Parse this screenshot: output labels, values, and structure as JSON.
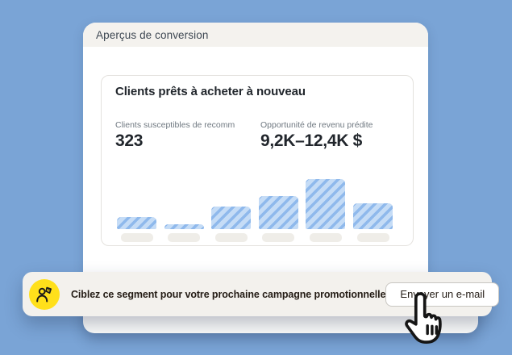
{
  "colors": {
    "background": "#7AA4D6",
    "card_header_bg": "#F4F2EE",
    "card_bg": "#FFFFFF",
    "inner_card_border": "#E4E2DE",
    "bar_base": "#C5DCF6",
    "bar_stripe": "#8FB9EC",
    "placeholder": "#EFEDE8",
    "banner_bg": "#F3F1ED",
    "accent_yellow": "#FFE01B",
    "text_dark": "#241C15",
    "text_heading": "#3E4853",
    "text_label": "#6F7880",
    "text_value": "#21262C",
    "button_border": "#C8C6C1"
  },
  "card": {
    "header_title": "Aperçus de conversion"
  },
  "panel": {
    "title": "Clients prêts à acheter à nouveau",
    "stats": [
      {
        "label": "Clients susceptibles de recomm",
        "value": "323"
      },
      {
        "label": "Opportunité de revenu prédite",
        "value": "9,2K–12,4K $"
      }
    ]
  },
  "chart_data": {
    "type": "bar",
    "title": "",
    "categories": [
      "",
      "",
      "",
      "",
      "",
      ""
    ],
    "values": [
      15,
      6,
      28,
      41,
      62,
      32
    ],
    "values_relative_percent": [
      24,
      10,
      45,
      66,
      100,
      52
    ],
    "ylabel": "",
    "xlabel": "",
    "grid": false,
    "legend": false,
    "x_tick_style": "blank gray placeholder pills (no text)",
    "bar_style": "light blue with diagonal hatch stripes"
  },
  "banner": {
    "icon": "person-with-tag-icon",
    "text": "Ciblez ce segment pour votre prochaine campagne promotionnelle",
    "button_label": "Envoyer un e-mail"
  },
  "cursor": "hand-pointer-cursor"
}
